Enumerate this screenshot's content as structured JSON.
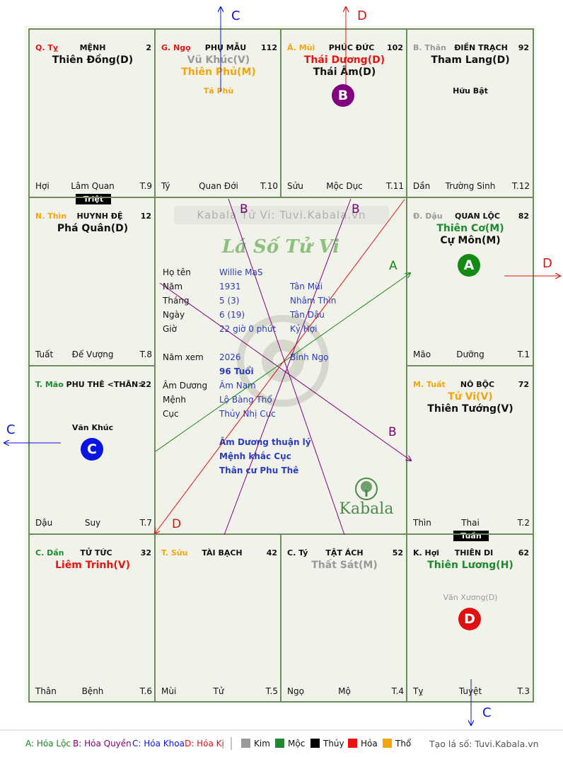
{
  "colors": {
    "kim": "#999999",
    "moc": "#1c8a2e",
    "thuy": "#000000",
    "hoa": "#ee1111",
    "tho": "#f5a50a",
    "a": "#138a13",
    "b": "#800080",
    "c": "#0a14e0",
    "d": "#e01010"
  },
  "watermark": "Kabala Tử Vi: Tuvi.Kabala.vn",
  "title": "Lá Số Tử Vi",
  "logo_text": "Kabala",
  "palaces": {
    "ty": {
      "can": "Q. Tỵ",
      "name": "MỆNH",
      "num": "2",
      "stars": [
        "Thiên Đồng(D)"
      ],
      "bl": "Hợi",
      "bc": "Lâm Quan",
      "br": "T.9"
    },
    "ngo": {
      "can": "G. Ngọ",
      "name": "PHỤ MẪU",
      "num": "112",
      "stars": [
        "Vũ Khúc(V)",
        "Thiên Phủ(M)"
      ],
      "minor": "Tả Phù",
      "bl": "Tý",
      "bc": "Quan Đới",
      "br": "T.10"
    },
    "mui": {
      "can": "Ã. Mùi",
      "name": "PHÚC ĐỨC",
      "num": "102",
      "stars": [
        "Thái Dương(D)",
        "Thái Âm(D)"
      ],
      "bl": "Sửu",
      "bc": "Mộc Dục",
      "br": "T.11"
    },
    "than": {
      "can": "B. Thân",
      "name": "ĐIỀN TRẠCH",
      "num": "92",
      "stars": [
        "Tham Lang(D)"
      ],
      "minor": "Hữu Bật",
      "bl": "Dần",
      "bc": "Trường Sinh",
      "br": "T.12"
    },
    "thin": {
      "can": "N. Thìn",
      "name": "HUYNH ĐỆ",
      "num": "12",
      "stars": [
        "Phá Quân(D)"
      ],
      "bl": "Tuất",
      "bc": "Đế Vượng",
      "br": "T.8"
    },
    "dau": {
      "can": "Đ. Dậu",
      "name": "QUAN LỘC",
      "num": "82",
      "stars": [
        "Thiên Cơ(M)",
        "Cự Môn(M)"
      ],
      "bl": "Mão",
      "bc": "Dưỡng",
      "br": "T.1"
    },
    "mao": {
      "can": "T. Mão",
      "name": "PHU THÊ <THÂN>",
      "num": "22",
      "minor": "Văn Khúc",
      "bl": "Dậu",
      "bc": "Suy",
      "br": "T.7"
    },
    "tuat": {
      "can": "M. Tuất",
      "name": "NÔ BỘC",
      "num": "72",
      "stars": [
        "Tử Vi(V)",
        "Thiên Tướng(V)"
      ],
      "bl": "Thìn",
      "bc": "Thai",
      "br": "T.2"
    },
    "dan": {
      "can": "C. Dần",
      "name": "TỬ TỨC",
      "num": "32",
      "stars": [
        "Liêm Trinh(V)"
      ],
      "bl": "Thân",
      "bc": "Bệnh",
      "br": "T.6"
    },
    "suu": {
      "can": "T. Sửu",
      "name": "TÀI BẠCH",
      "num": "42",
      "bl": "Mùi",
      "bc": "Tử",
      "br": "T.5"
    },
    "tyy": {
      "can": "C. Tý",
      "name": "TẬT ÁCH",
      "num": "52",
      "stars": [
        "Thất Sát(M)"
      ],
      "bl": "Ngọ",
      "bc": "Mộ",
      "br": "T.4"
    },
    "hoi": {
      "can": "K. Hợi",
      "name": "THIÊN DI",
      "num": "62",
      "stars": [
        "Thiên Lương(H)"
      ],
      "minor": "Văn Xương(D)",
      "bl": "Tỵ",
      "bc": "Tuyệt",
      "br": "T.3"
    }
  },
  "tags": {
    "triet": "Triệt",
    "tuan": "Tuần"
  },
  "info": {
    "rows": [
      {
        "label": "Họ tên",
        "v1": "Willie MaS",
        "v2": ""
      },
      {
        "label": "Năm",
        "v1": "1931",
        "v2": "Tân Mùi"
      },
      {
        "label": "Tháng",
        "v1": "5  (3)",
        "v2": "Nhâm Thìn"
      },
      {
        "label": "Ngày",
        "v1": "6  (19)",
        "v2": "Tân Dậu"
      },
      {
        "label": "Giờ",
        "v1": "22 giờ 0 phút",
        "v2": "Kỷ Hợi"
      },
      {
        "label": "Năm xem",
        "v1": "2026",
        "v2": "Bính Ngọ"
      },
      {
        "label": "",
        "v1": "96 Tuổi",
        "v2": ""
      },
      {
        "label": "Âm Dương",
        "v1": "Âm Nam",
        "v2": ""
      },
      {
        "label": "Mệnh",
        "v1": "Lộ Bàng Thổ",
        "v2": ""
      },
      {
        "label": "Cục",
        "v1": "Thủy Nhị Cục",
        "v2": ""
      }
    ],
    "notes": [
      "Âm Dương thuận lý",
      "Mệnh khắc Cục",
      "Thân cư Phu Thê"
    ]
  },
  "circles": {
    "b": "B",
    "a": "A",
    "c": "C",
    "d": "D"
  },
  "arrow_labels": {
    "a": "A",
    "b": "B",
    "c": "C",
    "d": "D"
  },
  "legend": {
    "a": "A: Hóa Lộc",
    "b": "B: Hóa Quyền",
    "c": "C: Hóa Khoa",
    "d": "D: Hóa Kị",
    "kim": "Kim",
    "moc": "Mộc",
    "thuy": "Thủy",
    "hoa": "Hỏa",
    "tho": "Thổ",
    "footer": "Tạo lá số: Tuvi.Kabala.vn"
  }
}
